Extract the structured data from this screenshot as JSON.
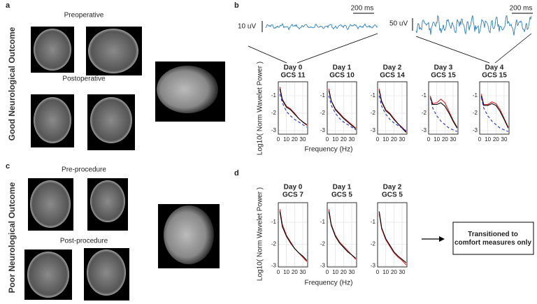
{
  "panel_a": {
    "label": "a",
    "row_label": "Good Neurological Outcome",
    "pre": "Preoperative",
    "post": "Postoperative"
  },
  "panel_c": {
    "label": "c",
    "row_label": "Poor Neurological Outcome",
    "pre": "Pre-procedure",
    "post": "Post-procedure"
  },
  "panel_b": {
    "label": "b",
    "trace_left": {
      "amplitude": "10 uV",
      "time": "200 ms"
    },
    "trace_right": {
      "amplitude": "50 uV",
      "time": "200 ms"
    },
    "ylabel": "Log10( Norm Wavelet Power )",
    "xlabel": "Frequency (Hz)",
    "x": [
      2,
      5,
      10,
      15,
      20,
      25,
      30,
      35
    ],
    "xlim": [
      0,
      36
    ],
    "xticks": [
      0,
      10,
      20,
      30
    ],
    "ylim": [
      -3.2,
      -0.2
    ],
    "yticks": [
      -1,
      -2,
      -3
    ],
    "plots": [
      {
        "day": "Day 0",
        "gcs": "GCS 11",
        "series": [
          {
            "color": "#e41a1c",
            "values": [
              -0.5,
              -1.2,
              -1.6,
              -1.75,
              -2.0,
              -2.3,
              -2.5,
              -2.7
            ]
          },
          {
            "color": "#000000",
            "values": [
              -0.6,
              -1.25,
              -1.65,
              -1.8,
              -2.05,
              -2.3,
              -2.5,
              -2.65
            ]
          },
          {
            "color": "#2233cc",
            "dashed": true,
            "values": [
              -0.9,
              -1.4,
              -1.9,
              -2.15,
              -2.35,
              -2.5,
              -2.65,
              -2.8
            ]
          }
        ]
      },
      {
        "day": "Day 1",
        "gcs": "GCS 10",
        "series": [
          {
            "color": "#e41a1c",
            "values": [
              -0.6,
              -1.3,
              -1.75,
              -2.0,
              -2.25,
              -2.45,
              -2.65,
              -2.85
            ]
          },
          {
            "color": "#000000",
            "values": [
              -0.7,
              -1.3,
              -1.8,
              -2.05,
              -2.3,
              -2.5,
              -2.7,
              -2.9
            ]
          },
          {
            "color": "#2233cc",
            "dashed": true,
            "values": [
              -1.0,
              -1.55,
              -2.0,
              -2.3,
              -2.5,
              -2.65,
              -2.8,
              -2.95
            ]
          }
        ]
      },
      {
        "day": "Day 2",
        "gcs": "GCS 14",
        "series": [
          {
            "color": "#e41a1c",
            "values": [
              -0.6,
              -1.3,
              -1.8,
              -2.0,
              -2.3,
              -2.6,
              -2.8,
              -3.05
            ]
          },
          {
            "color": "#000000",
            "values": [
              -0.7,
              -1.35,
              -1.85,
              -2.05,
              -2.35,
              -2.6,
              -2.85,
              -3.1
            ]
          },
          {
            "color": "#2233cc",
            "dashed": true,
            "values": [
              -1.0,
              -1.6,
              -2.05,
              -2.35,
              -2.55,
              -2.7,
              -2.85,
              -3.0
            ]
          }
        ]
      },
      {
        "day": "Day 3",
        "gcs": "GCS 15",
        "series": [
          {
            "color": "#e41a1c",
            "values": [
              -1.0,
              -1.45,
              -1.4,
              -1.2,
              -1.4,
              -1.9,
              -2.4,
              -2.8
            ]
          },
          {
            "color": "#000000",
            "values": [
              -1.1,
              -1.5,
              -1.5,
              -1.4,
              -1.6,
              -2.0,
              -2.45,
              -2.85
            ]
          },
          {
            "color": "#2233cc",
            "dashed": true,
            "values": [
              -1.1,
              -1.7,
              -2.15,
              -2.45,
              -2.65,
              -2.85,
              -2.95,
              -3.05
            ]
          }
        ]
      },
      {
        "day": "Day 4",
        "gcs": "GCS 15",
        "series": [
          {
            "color": "#e41a1c",
            "values": [
              -0.9,
              -1.5,
              -1.5,
              -1.35,
              -1.45,
              -1.8,
              -2.3,
              -2.8
            ]
          },
          {
            "color": "#000000",
            "values": [
              -1.0,
              -1.55,
              -1.55,
              -1.45,
              -1.55,
              -1.9,
              -2.35,
              -2.85
            ]
          },
          {
            "color": "#2233cc",
            "dashed": true,
            "values": [
              -1.1,
              -1.7,
              -2.15,
              -2.45,
              -2.65,
              -2.85,
              -2.95,
              -3.05
            ]
          }
        ]
      }
    ]
  },
  "panel_d": {
    "label": "d",
    "ylabel": "Log10( Norm Wavelet Power )",
    "xlabel": "Frequency (Hz)",
    "x": [
      2,
      5,
      10,
      15,
      20,
      25,
      30,
      35
    ],
    "xlim": [
      0,
      36
    ],
    "xticks": [
      0,
      10,
      20,
      30
    ],
    "ylim": [
      -3.05,
      -0.1
    ],
    "yticks": [
      -1,
      -2,
      -3
    ],
    "plots": [
      {
        "day": "Day 0",
        "gcs": "GCS 7",
        "series": [
          {
            "color": "#e41a1c",
            "values": [
              -0.4,
              -1.1,
              -1.6,
              -1.9,
              -2.2,
              -2.4,
              -2.6,
              -2.8
            ]
          },
          {
            "color": "#000000",
            "values": [
              -0.5,
              -1.2,
              -1.65,
              -1.95,
              -2.2,
              -2.4,
              -2.55,
              -2.75
            ]
          }
        ]
      },
      {
        "day": "Day 1",
        "gcs": "GCS 5",
        "series": [
          {
            "color": "#e41a1c",
            "values": [
              -0.4,
              -1.1,
              -1.6,
              -1.9,
              -2.1,
              -2.3,
              -2.5,
              -2.7
            ]
          },
          {
            "color": "#000000",
            "values": [
              -0.5,
              -1.15,
              -1.65,
              -1.95,
              -2.15,
              -2.35,
              -2.5,
              -2.65
            ]
          }
        ]
      },
      {
        "day": "Day 2",
        "gcs": "GCS 5",
        "series": [
          {
            "color": "#e41a1c",
            "values": [
              -0.6,
              -1.3,
              -1.8,
              -2.1,
              -2.4,
              -2.6,
              -2.75,
              -2.95
            ]
          },
          {
            "color": "#000000",
            "values": [
              -0.5,
              -1.25,
              -1.75,
              -2.05,
              -2.35,
              -2.55,
              -2.7,
              -2.85
            ]
          }
        ]
      }
    ],
    "note": "Transitioned to comfort measures only"
  }
}
